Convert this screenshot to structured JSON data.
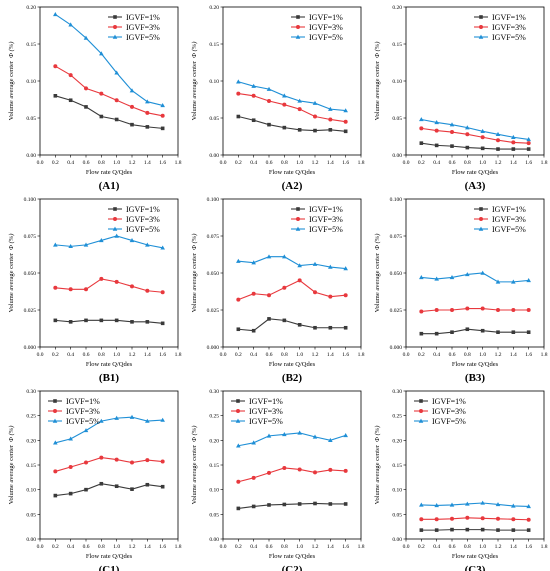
{
  "colors": {
    "IGVF=1%": "#3a3a3a",
    "IGVF=3%": "#e8383d",
    "IGVF=5%": "#1f8fd6"
  },
  "markers": {
    "IGVF=1%": "square",
    "IGVF=3%": "circle",
    "IGVF=5%": "triangle"
  },
  "chart_data": [
    {
      "id": "A1",
      "panel_label": "(A1)",
      "type": "line",
      "xlabel": "Flow rate Q/Qdes",
      "ylabel": "Volume average center",
      "y_symbol": "Φ (%)",
      "xlim": [
        0.0,
        1.8
      ],
      "xticks": [
        "0.0",
        "0.2",
        "0.4",
        "0.6",
        "0.8",
        "1.0",
        "1.2",
        "1.4",
        "1.6",
        "1.8"
      ],
      "ylim": [
        0,
        0.2
      ],
      "yticks": [
        "0.00",
        "0.05",
        "0.10",
        "0.15",
        "0.20"
      ],
      "legend_position": "top-right",
      "x": [
        0.2,
        0.4,
        0.6,
        0.8,
        1.0,
        1.2,
        1.4,
        1.6
      ],
      "series": [
        {
          "name": "IGVF=1%",
          "values": [
            0.08,
            0.074,
            0.065,
            0.052,
            0.048,
            0.041,
            0.038,
            0.036
          ]
        },
        {
          "name": "IGVF=3%",
          "values": [
            0.12,
            0.108,
            0.09,
            0.083,
            0.074,
            0.065,
            0.057,
            0.053
          ]
        },
        {
          "name": "IGVF=5%",
          "values": [
            0.19,
            0.176,
            0.158,
            0.137,
            0.111,
            0.087,
            0.072,
            0.067
          ]
        }
      ]
    },
    {
      "id": "A2",
      "panel_label": "(A2)",
      "type": "line",
      "xlabel": "Flow rate Q/Qdes",
      "ylabel": "Volume average center",
      "y_symbol": "Φ (%)",
      "xlim": [
        0.0,
        1.8
      ],
      "xticks": [
        "0.0",
        "0.2",
        "0.4",
        "0.6",
        "0.8",
        "1.0",
        "1.2",
        "1.4",
        "1.6",
        "1.8"
      ],
      "ylim": [
        0,
        0.2
      ],
      "yticks": [
        "0.00",
        "0.05",
        "0.10",
        "0.15",
        "0.20"
      ],
      "legend_position": "top-right",
      "x": [
        0.2,
        0.4,
        0.6,
        0.8,
        1.0,
        1.2,
        1.4,
        1.6
      ],
      "series": [
        {
          "name": "IGVF=1%",
          "values": [
            0.052,
            0.047,
            0.041,
            0.037,
            0.034,
            0.033,
            0.034,
            0.032
          ]
        },
        {
          "name": "IGVF=3%",
          "values": [
            0.083,
            0.08,
            0.073,
            0.068,
            0.062,
            0.052,
            0.048,
            0.045
          ]
        },
        {
          "name": "IGVF=5%",
          "values": [
            0.099,
            0.093,
            0.089,
            0.08,
            0.073,
            0.07,
            0.062,
            0.06
          ]
        }
      ]
    },
    {
      "id": "A3",
      "panel_label": "(A3)",
      "type": "line",
      "xlabel": "Flow rate Q/Qdes",
      "ylabel": "Volume average center",
      "y_symbol": "Φ (%)",
      "xlim": [
        0.0,
        1.8
      ],
      "xticks": [
        "0.0",
        "0.2",
        "0.4",
        "0.6",
        "0.8",
        "1.0",
        "1.2",
        "1.4",
        "1.6",
        "1.8"
      ],
      "ylim": [
        0,
        0.2
      ],
      "yticks": [
        "0.00",
        "0.05",
        "0.10",
        "0.15",
        "0.20"
      ],
      "legend_position": "top-right",
      "x": [
        0.2,
        0.4,
        0.6,
        0.8,
        1.0,
        1.2,
        1.4,
        1.6
      ],
      "series": [
        {
          "name": "IGVF=1%",
          "values": [
            0.016,
            0.013,
            0.012,
            0.01,
            0.009,
            0.008,
            0.008,
            0.008
          ]
        },
        {
          "name": "IGVF=3%",
          "values": [
            0.036,
            0.033,
            0.031,
            0.028,
            0.024,
            0.02,
            0.017,
            0.016
          ]
        },
        {
          "name": "IGVF=5%",
          "values": [
            0.048,
            0.044,
            0.041,
            0.037,
            0.032,
            0.028,
            0.024,
            0.021
          ]
        }
      ]
    },
    {
      "id": "B1",
      "panel_label": "(B1)",
      "type": "line",
      "xlabel": "Flow rate Q/Qdes",
      "ylabel": "Volume average center",
      "y_symbol": "Φ (%)",
      "xlim": [
        0.0,
        1.8
      ],
      "xticks": [
        "0.0",
        "0.2",
        "0.4",
        "0.6",
        "0.8",
        "1.0",
        "1.2",
        "1.4",
        "1.6",
        "1.8"
      ],
      "ylim": [
        0,
        0.1
      ],
      "yticks": [
        "0.000",
        "0.025",
        "0.050",
        "0.075",
        "0.100"
      ],
      "legend_position": "top-right",
      "x": [
        0.2,
        0.4,
        0.6,
        0.8,
        1.0,
        1.2,
        1.4,
        1.6
      ],
      "series": [
        {
          "name": "IGVF=1%",
          "values": [
            0.018,
            0.017,
            0.018,
            0.018,
            0.018,
            0.017,
            0.017,
            0.016
          ]
        },
        {
          "name": "IGVF=3%",
          "values": [
            0.04,
            0.039,
            0.039,
            0.046,
            0.044,
            0.041,
            0.038,
            0.037
          ]
        },
        {
          "name": "IGVF=5%",
          "values": [
            0.069,
            0.068,
            0.069,
            0.072,
            0.075,
            0.072,
            0.069,
            0.067
          ]
        }
      ]
    },
    {
      "id": "B2",
      "panel_label": "(B2)",
      "type": "line",
      "xlabel": "Flow rate Q/Qdes",
      "ylabel": "Volume average center",
      "y_symbol": "Φ (%)",
      "xlim": [
        0.0,
        1.8
      ],
      "xticks": [
        "0.0",
        "0.2",
        "0.4",
        "0.6",
        "0.8",
        "1.0",
        "1.2",
        "1.4",
        "1.6",
        "1.8"
      ],
      "ylim": [
        0,
        0.1
      ],
      "yticks": [
        "0.000",
        "0.025",
        "0.050",
        "0.075",
        "0.100"
      ],
      "legend_position": "top-right",
      "x": [
        0.2,
        0.4,
        0.6,
        0.8,
        1.0,
        1.2,
        1.4,
        1.6
      ],
      "series": [
        {
          "name": "IGVF=1%",
          "values": [
            0.012,
            0.011,
            0.019,
            0.018,
            0.015,
            0.013,
            0.013,
            0.013
          ]
        },
        {
          "name": "IGVF=3%",
          "values": [
            0.032,
            0.036,
            0.035,
            0.04,
            0.045,
            0.037,
            0.034,
            0.035
          ]
        },
        {
          "name": "IGVF=5%",
          "values": [
            0.058,
            0.057,
            0.061,
            0.061,
            0.055,
            0.056,
            0.054,
            0.053
          ]
        }
      ]
    },
    {
      "id": "B3",
      "panel_label": "(B3)",
      "type": "line",
      "xlabel": "Flow rate Q/Qdes",
      "ylabel": "Volume average center",
      "y_symbol": "Φ (%)",
      "xlim": [
        0.0,
        1.8
      ],
      "xticks": [
        "0.0",
        "0.2",
        "0.4",
        "0.6",
        "0.8",
        "1.0",
        "1.2",
        "1.4",
        "1.6",
        "1.8"
      ],
      "ylim": [
        0,
        0.1
      ],
      "yticks": [
        "0.000",
        "0.025",
        "0.050",
        "0.075",
        "0.100"
      ],
      "legend_position": "top-right",
      "x": [
        0.2,
        0.4,
        0.6,
        0.8,
        1.0,
        1.2,
        1.4,
        1.6
      ],
      "series": [
        {
          "name": "IGVF=1%",
          "values": [
            0.009,
            0.009,
            0.01,
            0.012,
            0.011,
            0.01,
            0.01,
            0.01
          ]
        },
        {
          "name": "IGVF=3%",
          "values": [
            0.024,
            0.025,
            0.025,
            0.026,
            0.026,
            0.025,
            0.025,
            0.025
          ]
        },
        {
          "name": "IGVF=5%",
          "values": [
            0.047,
            0.046,
            0.047,
            0.049,
            0.05,
            0.044,
            0.044,
            0.045
          ]
        }
      ]
    },
    {
      "id": "C1",
      "panel_label": "(C1)",
      "type": "line",
      "xlabel": "Flow rate Q/Qdes",
      "ylabel": "Volume average center",
      "y_symbol": "Φ (%)",
      "xlim": [
        0.0,
        1.8
      ],
      "xticks": [
        "0.0",
        "0.2",
        "0.4",
        "0.6",
        "0.8",
        "1.0",
        "1.2",
        "1.4",
        "1.6",
        "1.8"
      ],
      "ylim": [
        0,
        0.3
      ],
      "yticks": [
        "0.00",
        "0.05",
        "0.10",
        "0.15",
        "0.20",
        "0.25",
        "0.30"
      ],
      "legend_position": "top-left",
      "x": [
        0.2,
        0.4,
        0.6,
        0.8,
        1.0,
        1.2,
        1.4,
        1.6
      ],
      "series": [
        {
          "name": "IGVF=1%",
          "values": [
            0.088,
            0.092,
            0.1,
            0.112,
            0.107,
            0.101,
            0.11,
            0.106
          ]
        },
        {
          "name": "IGVF=3%",
          "values": [
            0.137,
            0.146,
            0.155,
            0.165,
            0.161,
            0.155,
            0.16,
            0.157
          ]
        },
        {
          "name": "IGVF=5%",
          "values": [
            0.195,
            0.203,
            0.22,
            0.239,
            0.245,
            0.247,
            0.239,
            0.241
          ]
        }
      ]
    },
    {
      "id": "C2",
      "panel_label": "(C2)",
      "type": "line",
      "xlabel": "Flow rate Q/Qdes",
      "ylabel": "Volume average center",
      "y_symbol": "Φ (%)",
      "xlim": [
        0.0,
        1.8
      ],
      "xticks": [
        "0.0",
        "0.2",
        "0.4",
        "0.6",
        "0.8",
        "1.0",
        "1.2",
        "1.4",
        "1.6",
        "1.8"
      ],
      "ylim": [
        0,
        0.3
      ],
      "yticks": [
        "0.00",
        "0.05",
        "0.10",
        "0.15",
        "0.20",
        "0.25",
        "0.30"
      ],
      "legend_position": "top-left",
      "x": [
        0.2,
        0.4,
        0.6,
        0.8,
        1.0,
        1.2,
        1.4,
        1.6
      ],
      "series": [
        {
          "name": "IGVF=1%",
          "values": [
            0.062,
            0.066,
            0.069,
            0.07,
            0.071,
            0.072,
            0.071,
            0.071
          ]
        },
        {
          "name": "IGVF=3%",
          "values": [
            0.116,
            0.124,
            0.134,
            0.144,
            0.141,
            0.135,
            0.14,
            0.138
          ]
        },
        {
          "name": "IGVF=5%",
          "values": [
            0.189,
            0.195,
            0.209,
            0.212,
            0.215,
            0.207,
            0.2,
            0.21
          ]
        }
      ]
    },
    {
      "id": "C3",
      "panel_label": "(C3)",
      "type": "line",
      "xlabel": "Flow rate Q/Qdes",
      "ylabel": "Volume average center",
      "y_symbol": "Φ (%)",
      "xlim": [
        0.0,
        1.8
      ],
      "xticks": [
        "0.0",
        "0.2",
        "0.4",
        "0.6",
        "0.8",
        "1.0",
        "1.2",
        "1.4",
        "1.6",
        "1.8"
      ],
      "ylim": [
        0,
        0.3
      ],
      "yticks": [
        "0.00",
        "0.05",
        "0.10",
        "0.15",
        "0.20",
        "0.25",
        "0.30"
      ],
      "legend_position": "top-left",
      "x": [
        0.2,
        0.4,
        0.6,
        0.8,
        1.0,
        1.2,
        1.4,
        1.6
      ],
      "series": [
        {
          "name": "IGVF=1%",
          "values": [
            0.018,
            0.018,
            0.019,
            0.019,
            0.019,
            0.018,
            0.018,
            0.018
          ]
        },
        {
          "name": "IGVF=3%",
          "values": [
            0.04,
            0.04,
            0.041,
            0.043,
            0.042,
            0.041,
            0.04,
            0.039
          ]
        },
        {
          "name": "IGVF=5%",
          "values": [
            0.069,
            0.068,
            0.069,
            0.071,
            0.073,
            0.07,
            0.067,
            0.066
          ]
        }
      ]
    }
  ]
}
